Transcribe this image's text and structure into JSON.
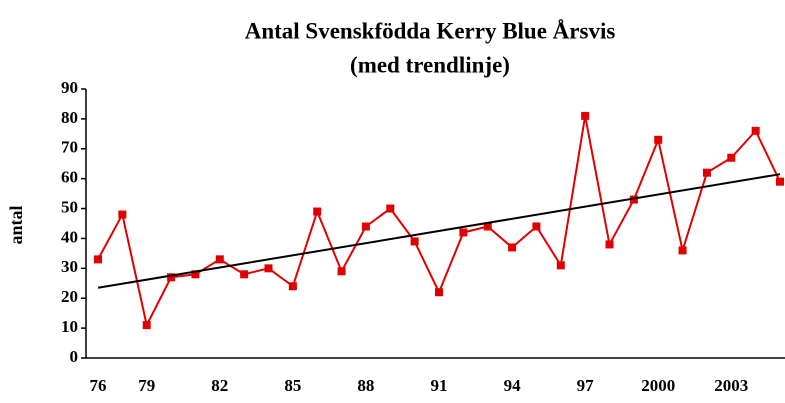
{
  "chart_data": {
    "type": "line",
    "title": "Antal Svenskfödda Kerry Blue Årsvis",
    "subtitle": "(med trendlinje)",
    "ylabel": "antal",
    "categories": [
      "76",
      null,
      "79",
      null,
      null,
      "82",
      null,
      null,
      "85",
      null,
      null,
      "88",
      null,
      null,
      "91",
      null,
      null,
      "94",
      null,
      null,
      "97",
      null,
      null,
      "2000",
      null,
      null,
      "2003",
      null,
      null
    ],
    "series": [
      {
        "color": "#e00000",
        "values": [
          33,
          48,
          11,
          27,
          28,
          33,
          28,
          30,
          24,
          49,
          29,
          44,
          50,
          39,
          22,
          42,
          44,
          37,
          44,
          31,
          81,
          38,
          53,
          73,
          36,
          62,
          67,
          76,
          59
        ]
      }
    ],
    "trendline": {
      "color": "#000000",
      "values": [
        23.5,
        61.5
      ]
    },
    "ylim": [
      0,
      90
    ],
    "yticks": [
      0,
      10,
      20,
      30,
      40,
      50,
      60,
      70,
      80,
      90
    ],
    "grid": false
  }
}
